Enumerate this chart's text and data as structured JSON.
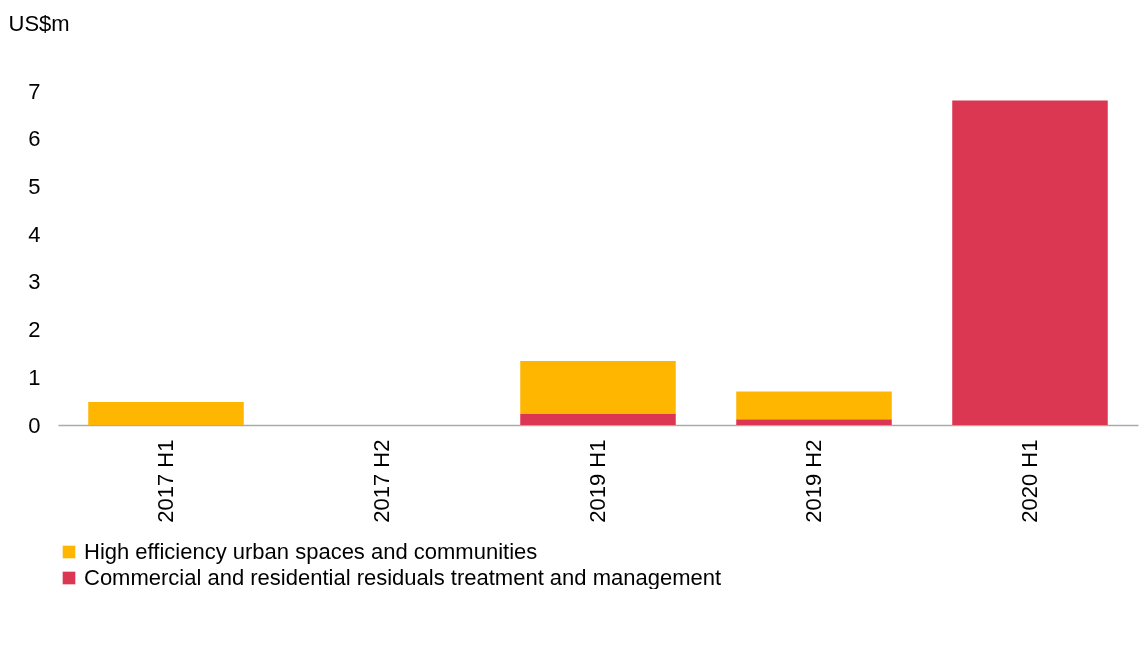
{
  "chart_data": {
    "type": "bar",
    "stacked": true,
    "ylabel": "US$m",
    "categories": [
      "2017 H1",
      "2017 H2",
      "2019 H1",
      "2019 H2",
      "2020 H1"
    ],
    "series": [
      {
        "name": "Commercial and residential residuals treatment and management",
        "color": "#db3652",
        "values": [
          0,
          0,
          0.24,
          0.12,
          6.8
        ]
      },
      {
        "name": "High efficiency urban spaces and communities",
        "color": "#ffb600",
        "values": [
          0.48,
          0,
          1.1,
          0.58,
          0
        ]
      }
    ],
    "ylim": [
      0,
      7
    ],
    "yticks": [
      0,
      1,
      2,
      3,
      4,
      5,
      6,
      7
    ],
    "grid": false,
    "legend": "bottom"
  }
}
